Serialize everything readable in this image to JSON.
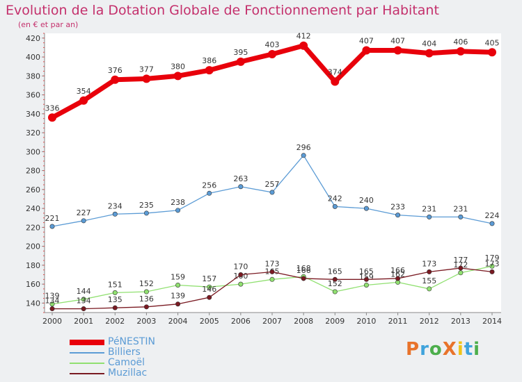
{
  "header": {
    "title": "Evolution de la Dotation Globale de Fonctionnement par Habitant",
    "subtitle": "(en € et par an)"
  },
  "brand": {
    "text": "ProXiti",
    "colors": [
      "#e8732b",
      "#3fa3dc",
      "#4cae4c",
      "#e8732b",
      "#f0c419",
      "#3fa3dc",
      "#4cae4c"
    ]
  },
  "chart_data": {
    "type": "line",
    "title": "Evolution de la Dotation Globale de Fonctionnement par Habitant",
    "subtitle": "(en € et par an)",
    "x": [
      "2000",
      "2001",
      "2002",
      "2003",
      "2004",
      "2005",
      "2006",
      "2007",
      "2008",
      "2009",
      "2010",
      "2011",
      "2012",
      "2013",
      "2014"
    ],
    "ylim": [
      130,
      425
    ],
    "yticks": [
      140,
      160,
      180,
      200,
      220,
      240,
      260,
      280,
      300,
      320,
      340,
      360,
      380,
      400,
      420
    ],
    "grid": false,
    "legend_position": "bottom-left",
    "series": [
      {
        "name": "PéNESTIN",
        "color": "#e8000b",
        "values": [
          336,
          354,
          376,
          377,
          380,
          386,
          395,
          403,
          412,
          374,
          407,
          407,
          404,
          406,
          405
        ]
      },
      {
        "name": "Billiers",
        "color": "#5b9bd5",
        "values": [
          221,
          227,
          234,
          235,
          238,
          256,
          263,
          257,
          296,
          242,
          240,
          233,
          231,
          231,
          224
        ]
      },
      {
        "name": "Camoël",
        "color": "#90e070",
        "values": [
          139,
          144,
          151,
          152,
          159,
          157,
          160,
          165,
          168,
          152,
          159,
          162,
          155,
          172,
          179
        ]
      },
      {
        "name": "Muzillac",
        "color": "#7a1a22",
        "values": [
          134,
          134,
          135,
          136,
          139,
          146,
          170,
          173,
          166,
          165,
          165,
          166,
          173,
          177,
          173
        ]
      }
    ]
  }
}
